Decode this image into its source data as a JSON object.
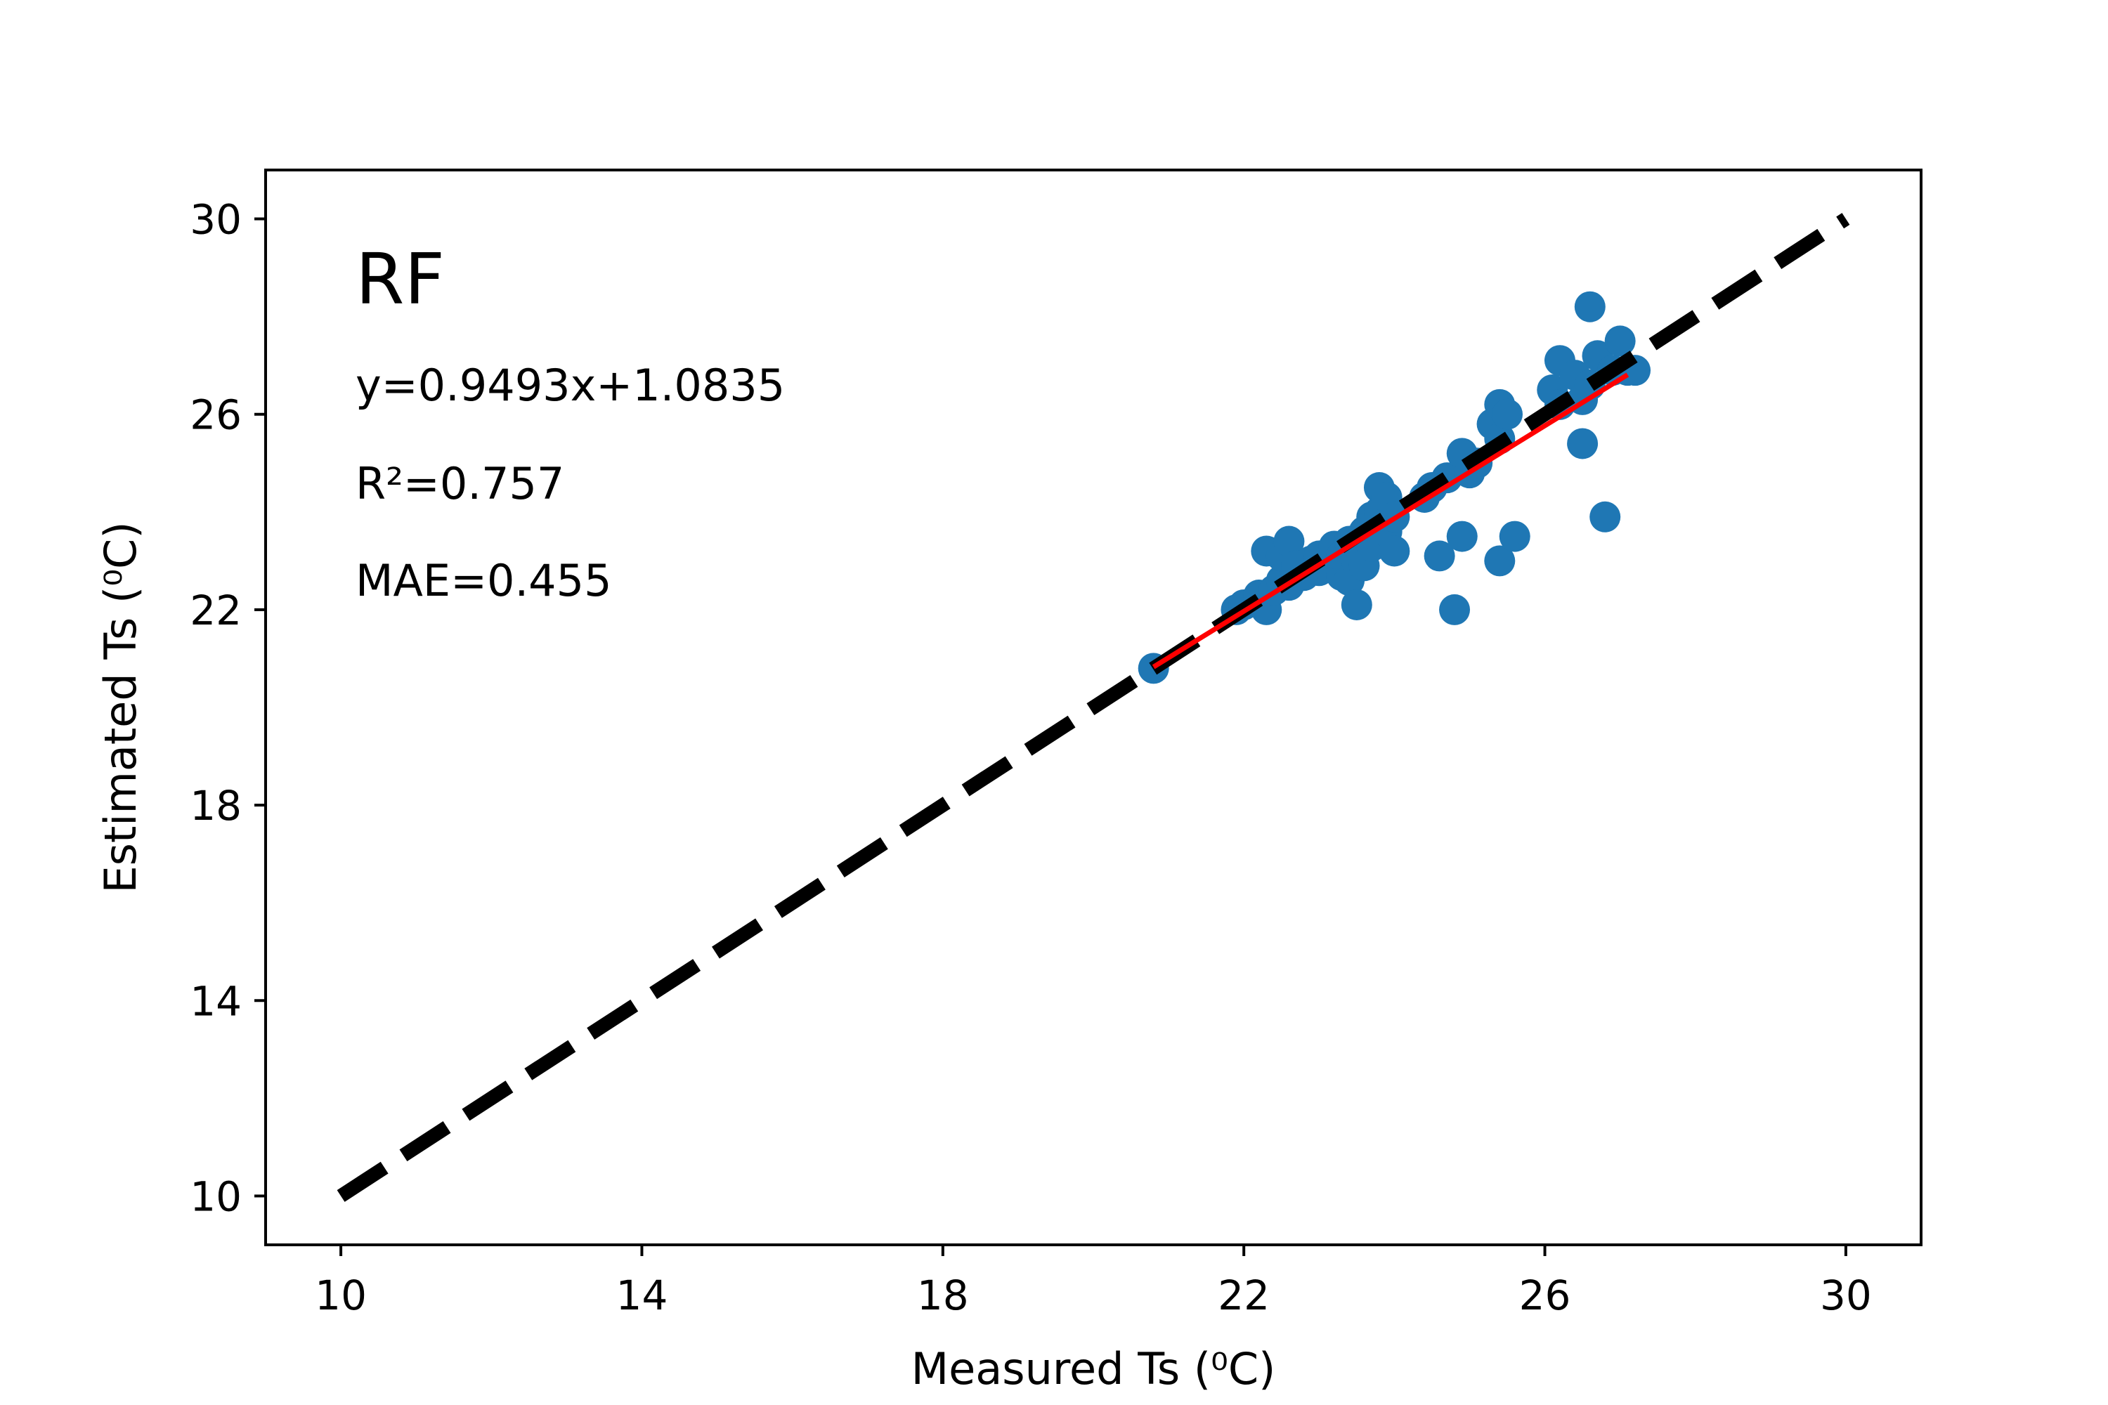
{
  "chart_data": {
    "type": "scatter",
    "panel_label": "RF",
    "annotations": {
      "equation": "y=0.9493x+1.0835",
      "r2": "R²=0.757",
      "mae": "MAE=0.455"
    },
    "xlabel": "Measured Ts (⁰C)",
    "ylabel": "Estimated Ts (⁰C)",
    "xlim": [
      9,
      31
    ],
    "ylim": [
      9,
      31
    ],
    "xticks": [
      10,
      14,
      18,
      22,
      26,
      30
    ],
    "yticks": [
      10,
      14,
      18,
      22,
      26,
      30
    ],
    "grid": false,
    "point_color": "#1f77b4",
    "one_to_one_line": {
      "x": [
        10,
        30
      ],
      "y": [
        10,
        30
      ],
      "color": "#000000",
      "style": "dashed"
    },
    "fit_line": {
      "x": [
        20.8,
        27.1
      ],
      "slope": 0.9493,
      "intercept": 1.0835,
      "color": "#ff0000"
    },
    "points": [
      [
        20.8,
        20.8
      ],
      [
        21.9,
        22.0
      ],
      [
        22.0,
        22.1
      ],
      [
        22.2,
        22.3
      ],
      [
        22.3,
        22.0
      ],
      [
        22.3,
        23.2
      ],
      [
        22.4,
        22.4
      ],
      [
        22.5,
        22.6
      ],
      [
        22.5,
        23.1
      ],
      [
        22.6,
        23.4
      ],
      [
        22.6,
        22.5
      ],
      [
        22.7,
        22.9
      ],
      [
        22.8,
        22.7
      ],
      [
        22.9,
        23.0
      ],
      [
        23.0,
        22.8
      ],
      [
        23.0,
        23.1
      ],
      [
        23.1,
        22.9
      ],
      [
        23.2,
        23.3
      ],
      [
        23.3,
        22.7
      ],
      [
        23.3,
        23.1
      ],
      [
        23.4,
        22.6
      ],
      [
        23.4,
        23.4
      ],
      [
        23.5,
        22.1
      ],
      [
        23.5,
        23.0
      ],
      [
        23.6,
        23.6
      ],
      [
        23.6,
        22.9
      ],
      [
        23.7,
        23.9
      ],
      [
        23.7,
        23.3
      ],
      [
        23.8,
        24.5
      ],
      [
        23.8,
        24.0
      ],
      [
        23.9,
        23.6
      ],
      [
        23.9,
        24.3
      ],
      [
        24.0,
        23.2
      ],
      [
        24.0,
        23.9
      ],
      [
        24.4,
        24.3
      ],
      [
        24.5,
        24.5
      ],
      [
        24.6,
        23.1
      ],
      [
        24.7,
        24.7
      ],
      [
        24.8,
        22.0
      ],
      [
        24.9,
        25.2
      ],
      [
        24.9,
        23.5
      ],
      [
        25.0,
        24.8
      ],
      [
        25.1,
        25.0
      ],
      [
        25.3,
        25.8
      ],
      [
        25.4,
        25.5
      ],
      [
        25.4,
        26.2
      ],
      [
        25.4,
        23.0
      ],
      [
        25.5,
        26.0
      ],
      [
        25.6,
        23.5
      ],
      [
        26.1,
        26.5
      ],
      [
        26.2,
        27.1
      ],
      [
        26.2,
        26.2
      ],
      [
        26.4,
        26.8
      ],
      [
        26.5,
        26.3
      ],
      [
        26.5,
        25.4
      ],
      [
        26.6,
        26.6
      ],
      [
        26.6,
        28.2
      ],
      [
        26.7,
        27.2
      ],
      [
        26.8,
        23.9
      ],
      [
        26.9,
        26.9
      ],
      [
        27.0,
        27.5
      ],
      [
        27.1,
        26.9
      ],
      [
        27.2,
        26.9
      ]
    ]
  }
}
